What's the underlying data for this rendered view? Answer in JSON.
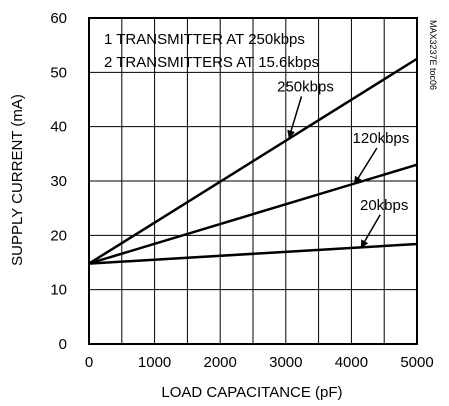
{
  "chart_data": {
    "type": "line",
    "xlabel": "LOAD CAPACITANCE (pF)",
    "ylabel": "SUPPLY CURRENT (mA)",
    "xlim": [
      0,
      5000
    ],
    "ylim": [
      0,
      60
    ],
    "x_ticks": [
      "0",
      "1000",
      "2000",
      "3000",
      "4000",
      "5000"
    ],
    "y_ticks": [
      "0",
      "10",
      "20",
      "30",
      "40",
      "50",
      "60"
    ],
    "grid": true,
    "annotations": [
      "1 TRANSMITTER AT 250kbps",
      "2 TRANSMITTERS AT 15.6kbps"
    ],
    "part_number": "MAX3237E toc06",
    "series": [
      {
        "name": "250kbps",
        "x": [
          0,
          5000
        ],
        "y": [
          14.8,
          52.5
        ],
        "label_x": 3300,
        "label_y": 46.5,
        "arrow_to": [
          3050,
          38.0
        ]
      },
      {
        "name": "120kbps",
        "x": [
          0,
          5000
        ],
        "y": [
          14.8,
          33.0
        ],
        "label_x": 4450,
        "label_y": 37.0,
        "arrow_to": [
          4050,
          29.5
        ]
      },
      {
        "name": "20kbps",
        "x": [
          0,
          5000
        ],
        "y": [
          14.8,
          18.4
        ],
        "label_x": 4500,
        "label_y": 24.7,
        "arrow_to": [
          4150,
          17.8
        ]
      }
    ]
  }
}
